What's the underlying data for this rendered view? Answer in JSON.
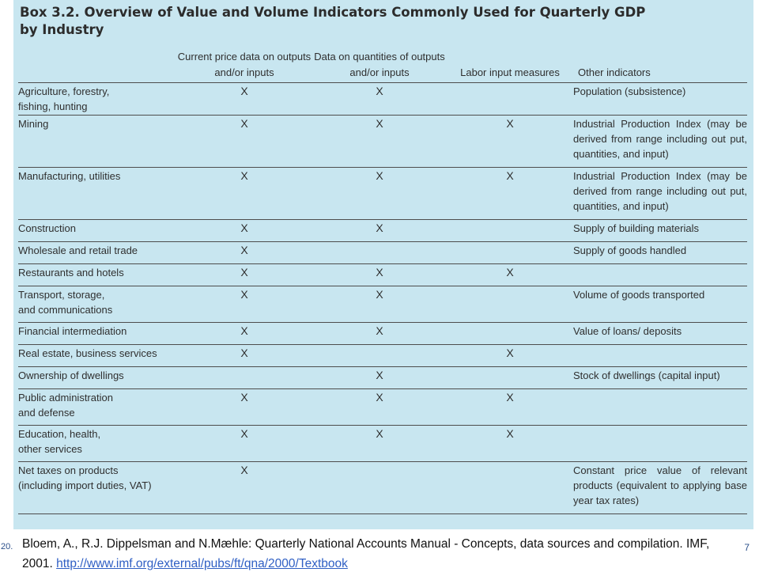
{
  "box": {
    "title": "Box 3.2. Overview of Value and Volume Indicators Commonly Used for Quarterly GDP by Industry",
    "columns": [
      "",
      "Current price data on outputs and/or inputs",
      "Data on quantities of outputs and/or inputs",
      "Labor input measures",
      "Other indicators"
    ],
    "rows": [
      {
        "industry": "Agriculture, forestry,\nfishing, hunting",
        "current": "X",
        "quantities": "X",
        "labor": "",
        "other": "Population (subsistence)"
      },
      {
        "industry": "Mining",
        "current": "X",
        "quantities": "X",
        "labor": "X",
        "other": "Industrial Production Index (may be derived from range including out put, quantities, and input)"
      },
      {
        "industry": "Manufacturing, utilities",
        "current": "X",
        "quantities": "X",
        "labor": "X",
        "other": "Industrial Production Index (may be derived from range including out put, quantities, and input)"
      },
      {
        "industry": "Construction",
        "current": "X",
        "quantities": "X",
        "labor": "",
        "other": "Supply of building materials"
      },
      {
        "industry": "Wholesale and retail trade",
        "current": "X",
        "quantities": "",
        "labor": "",
        "other": "Supply of goods handled"
      },
      {
        "industry": "Restaurants and hotels",
        "current": "X",
        "quantities": "X",
        "labor": "X",
        "other": ""
      },
      {
        "industry": "Transport, storage,\n  and communications",
        "current": "X",
        "quantities": "X",
        "labor": "",
        "other": "Volume of goods transported"
      },
      {
        "industry": "Financial intermediation",
        "current": "X",
        "quantities": "X",
        "labor": "",
        "other": "Value of loans/ deposits"
      },
      {
        "industry": "Real estate, business services",
        "current": "X",
        "quantities": "",
        "labor": "X",
        "other": ""
      },
      {
        "industry": "Ownership of dwellings",
        "current": "",
        "quantities": "X",
        "labor": "",
        "other": "Stock of dwellings (capital input)"
      },
      {
        "industry": "Public administration\n  and defense",
        "current": "X",
        "quantities": "X",
        "labor": "X",
        "other": ""
      },
      {
        "industry": "Education, health,\n  other services",
        "current": "X",
        "quantities": "X",
        "labor": "X",
        "other": ""
      },
      {
        "industry": "Net taxes on products\n  (including import duties, VAT)",
        "current": "X",
        "quantities": "",
        "labor": "",
        "other": "Constant price value of relevant products (equivalent to applying base year tax rates)"
      }
    ]
  },
  "footer": {
    "slide_left": "20.",
    "citation_text": "Bloem, A., R.J. Dippelsman and N.Mæhle: Quarterly National Accounts Manual - Concepts, data sources and compilation. IMF, 2001. ",
    "citation_link": "http://www.imf.org/external/pubs/ft/qna/2000/Textbook",
    "page_number": "7"
  }
}
